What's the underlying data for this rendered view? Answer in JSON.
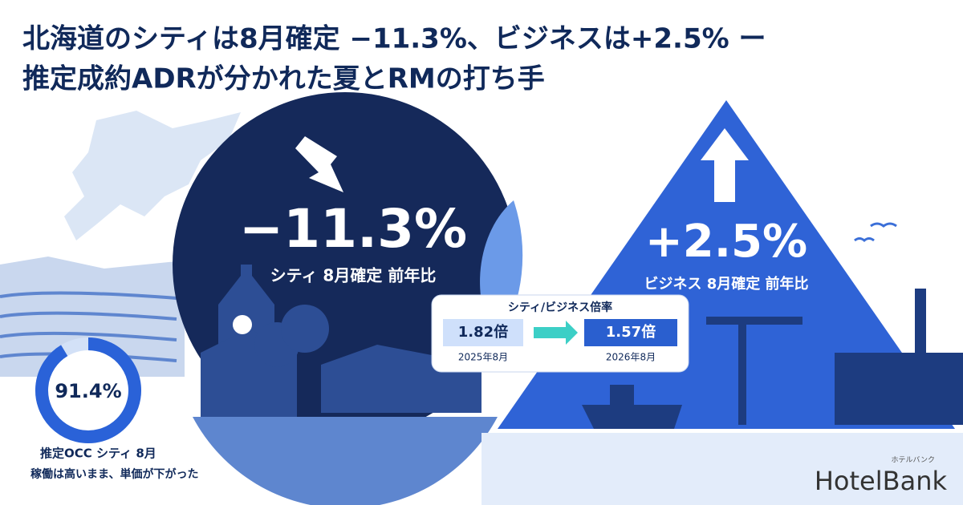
{
  "title": {
    "line1": "北海道のシティは8月確定 −11.3%、ビジネスは+2.5% ー",
    "line2": "推定成約ADRが分かれた夏とRMの打ち手"
  },
  "city": {
    "value_label": "−11.3%",
    "caption": "シティ 8月確定 前年比"
  },
  "business": {
    "value_label": "+2.5%",
    "caption": "ビジネス 8月確定 前年比"
  },
  "ratio": {
    "title": "シティ/ビジネス倍率",
    "before": {
      "value": "1.82倍",
      "period": "2025年8月"
    },
    "after": {
      "value": "1.57倍",
      "period": "2026年8月"
    }
  },
  "occ": {
    "value": 91.4,
    "label": "91.4%",
    "caption": "推定OCC シティ 8月",
    "note": "稼働は高いまま、単価が下がった"
  },
  "logo": {
    "name": "HotelBank",
    "kana": "ホテルバンク"
  }
}
